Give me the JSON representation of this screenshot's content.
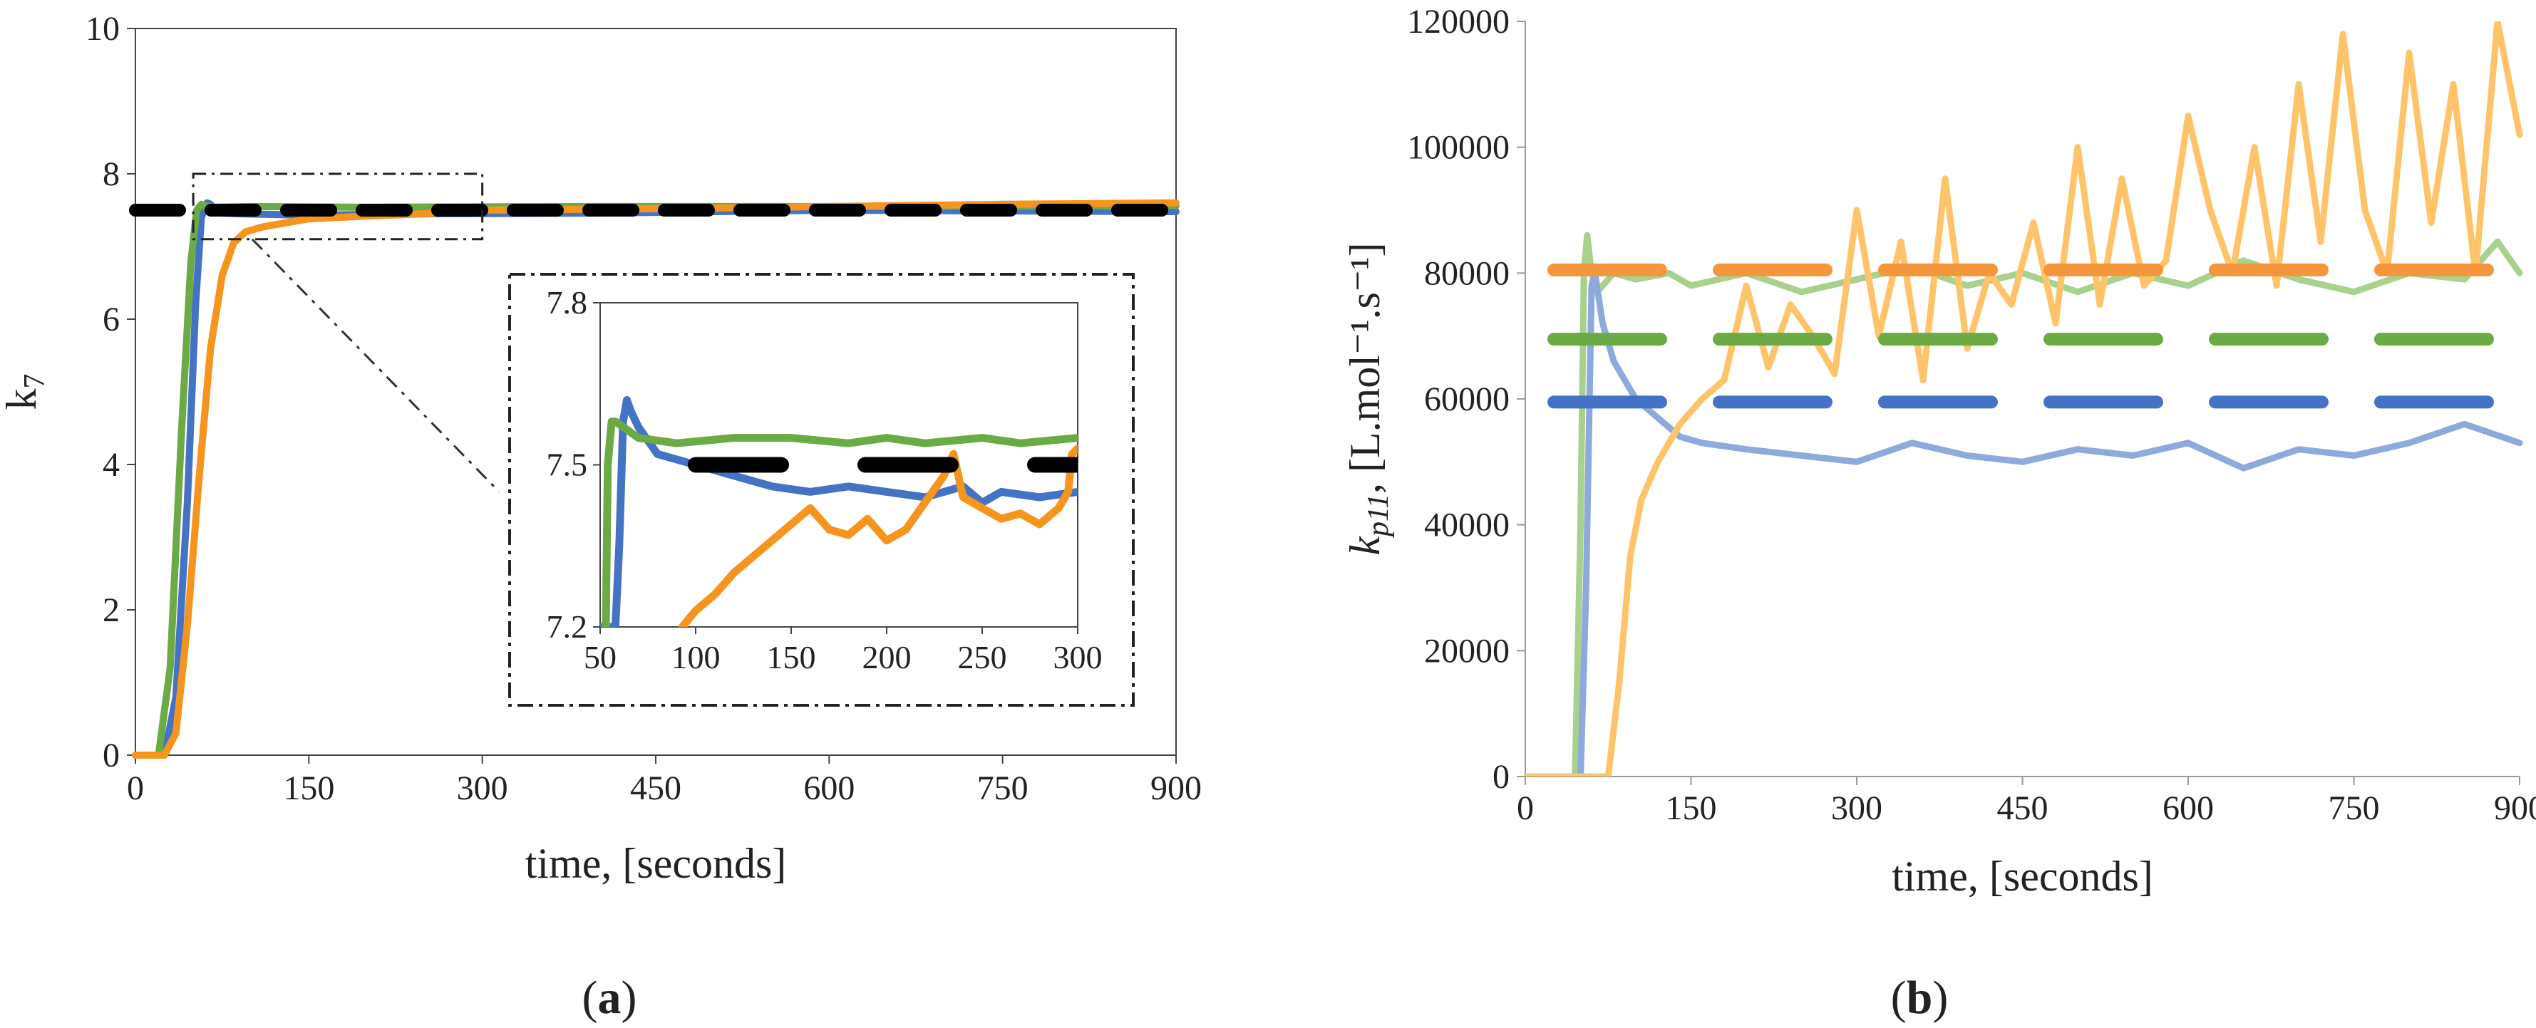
{
  "colors": {
    "blue": "#4472C4",
    "orange": "#F5951E",
    "green": "#6CAA45",
    "reference": "#000000",
    "blue_light": "#8EA9DB",
    "orange_light": "#FFC46A",
    "green_light": "#A9D18E",
    "orange_setpoint": "#F4963C"
  },
  "chart_data": [
    {
      "type": "line",
      "panel_label": "(a)",
      "panel_letter": "a",
      "ylabel": "k",
      "ylabel_subscript": "7",
      "xlabel": "time, [seconds]",
      "xlim": [
        0,
        900
      ],
      "ylim": [
        0,
        10
      ],
      "x_ticks": [
        "0",
        "150",
        "300",
        "450",
        "600",
        "750",
        "900"
      ],
      "y_ticks": [
        "0",
        "2",
        "4",
        "6",
        "8",
        "10"
      ],
      "grid": false,
      "reference_line": {
        "name": "target",
        "y": 7.5,
        "style": "dashed",
        "color": "#000000"
      },
      "series": [
        {
          "name": "blue",
          "color": "#4472C4",
          "x": [
            0,
            25,
            35,
            45,
            52,
            57,
            62,
            65,
            68,
            75,
            90,
            150,
            250,
            400,
            600,
            900
          ],
          "y": [
            0,
            0,
            0.8,
            3.5,
            6.2,
            7.4,
            7.6,
            7.58,
            7.5,
            7.46,
            7.45,
            7.43,
            7.45,
            7.46,
            7.5,
            7.48
          ]
        },
        {
          "name": "green",
          "color": "#6CAA45",
          "x": [
            0,
            20,
            30,
            40,
            48,
            53,
            57,
            60,
            70,
            100,
            200,
            400,
            600,
            900
          ],
          "y": [
            0,
            0,
            1.2,
            4.5,
            6.8,
            7.5,
            7.58,
            7.56,
            7.54,
            7.55,
            7.54,
            7.55,
            7.55,
            7.56
          ]
        },
        {
          "name": "orange",
          "color": "#F5951E",
          "x": [
            0,
            25,
            35,
            45,
            55,
            65,
            75,
            85,
            95,
            110,
            150,
            200,
            250,
            300,
            450,
            600,
            750,
            900
          ],
          "y": [
            0,
            0,
            0.3,
            1.8,
            3.8,
            5.6,
            6.6,
            7.05,
            7.2,
            7.27,
            7.38,
            7.42,
            7.45,
            7.5,
            7.52,
            7.55,
            7.58,
            7.6
          ]
        }
      ],
      "zoom_box": {
        "x_range": [
          50,
          300
        ],
        "y_range": [
          7.1,
          8.0
        ]
      },
      "inset": {
        "xlim": [
          50,
          300
        ],
        "ylim": [
          7.2,
          7.8
        ],
        "x_ticks": [
          "50",
          "100",
          "150",
          "200",
          "250",
          "300"
        ],
        "y_ticks": [
          "7.2",
          "7.5",
          "7.8"
        ],
        "reference_line": {
          "y": 7.5,
          "style": "dashed",
          "color": "#000000"
        },
        "series": [
          {
            "name": "blue",
            "color": "#4472C4",
            "x": [
              50,
              58,
              60,
              62,
              64,
              66,
              70,
              80,
              100,
              120,
              140,
              160,
              180,
              200,
              220,
              240,
              250,
              260,
              280,
              300
            ],
            "y": [
              7.2,
              7.2,
              7.35,
              7.58,
              7.62,
              7.6,
              7.57,
              7.52,
              7.5,
              7.48,
              7.46,
              7.45,
              7.46,
              7.45,
              7.44,
              7.46,
              7.43,
              7.45,
              7.44,
              7.45
            ]
          },
          {
            "name": "green",
            "color": "#6CAA45",
            "x": [
              53,
              54,
              56,
              58,
              62,
              70,
              90,
              120,
              150,
              180,
              200,
              220,
              250,
              270,
              300
            ],
            "y": [
              7.2,
              7.5,
              7.58,
              7.58,
              7.57,
              7.55,
              7.54,
              7.55,
              7.55,
              7.54,
              7.55,
              7.54,
              7.55,
              7.54,
              7.55
            ]
          },
          {
            "name": "orange",
            "color": "#F5951E",
            "x": [
              93,
              100,
              110,
              120,
              130,
              140,
              150,
              160,
              170,
              180,
              190,
              200,
              210,
              220,
              230,
              235,
              240,
              250,
              260,
              270,
              280,
              290,
              295,
              297,
              300
            ],
            "y": [
              7.2,
              7.23,
              7.26,
              7.3,
              7.33,
              7.36,
              7.39,
              7.42,
              7.38,
              7.37,
              7.4,
              7.36,
              7.38,
              7.43,
              7.48,
              7.52,
              7.44,
              7.42,
              7.4,
              7.41,
              7.39,
              7.42,
              7.45,
              7.52,
              7.53
            ]
          }
        ]
      }
    },
    {
      "type": "line",
      "panel_label": "(b)",
      "panel_letter": "b",
      "ylabel": "k",
      "ylabel_subscript": "p11",
      "ylabel_units": ", [L.mol⁻¹.s⁻¹]",
      "xlabel": "time, [seconds]",
      "xlim": [
        0,
        900
      ],
      "ylim": [
        0,
        120000
      ],
      "x_ticks": [
        "0",
        "150",
        "300",
        "450",
        "600",
        "750",
        "900"
      ],
      "y_ticks": [
        "0",
        "20000",
        "40000",
        "60000",
        "80000",
        "100000",
        "120000"
      ],
      "grid": false,
      "setpoint_lines": [
        {
          "name": "orange-setpoint",
          "y": 80500,
          "color": "#F4963C",
          "style": "dashed"
        },
        {
          "name": "green-setpoint",
          "y": 69500,
          "color": "#6CAA45",
          "style": "dashed"
        },
        {
          "name": "blue-setpoint",
          "y": 59500,
          "color": "#4472C4",
          "style": "dashed"
        }
      ],
      "series": [
        {
          "name": "green",
          "color": "#A9D18E",
          "x": [
            0,
            45,
            50,
            53,
            56,
            60,
            65,
            80,
            100,
            130,
            150,
            200,
            250,
            300,
            350,
            400,
            450,
            500,
            550,
            600,
            650,
            700,
            750,
            800,
            850,
            880,
            900
          ],
          "y": [
            0,
            0,
            40000,
            80000,
            86000,
            80000,
            77000,
            80000,
            79000,
            80000,
            78000,
            80000,
            77000,
            79000,
            81000,
            78000,
            80000,
            77000,
            80000,
            78000,
            82000,
            79000,
            77000,
            80000,
            79000,
            85000,
            80000
          ]
        },
        {
          "name": "blue",
          "color": "#8EA9DB",
          "x": [
            0,
            50,
            55,
            60,
            63,
            70,
            80,
            90,
            100,
            120,
            140,
            160,
            200,
            250,
            300,
            350,
            400,
            450,
            500,
            550,
            600,
            650,
            700,
            750,
            800,
            850,
            900
          ],
          "y": [
            0,
            0,
            30000,
            78000,
            80000,
            72000,
            66000,
            63000,
            60000,
            57000,
            54000,
            53000,
            52000,
            51000,
            50000,
            53000,
            51000,
            50000,
            52000,
            51000,
            53000,
            49000,
            52000,
            51000,
            53000,
            56000,
            53000
          ]
        },
        {
          "name": "orange",
          "color": "#FFC46A",
          "x": [
            0,
            75,
            85,
            95,
            105,
            120,
            140,
            160,
            180,
            200,
            220,
            240,
            260,
            280,
            300,
            320,
            340,
            360,
            380,
            400,
            420,
            440,
            460,
            480,
            500,
            520,
            540,
            560,
            580,
            600,
            620,
            640,
            660,
            680,
            700,
            720,
            740,
            760,
            780,
            800,
            820,
            840,
            860,
            880,
            900
          ],
          "y": [
            0,
            0,
            15000,
            35000,
            44000,
            50000,
            56000,
            60000,
            63000,
            78000,
            65000,
            75000,
            70000,
            64000,
            90000,
            70000,
            85000,
            63000,
            95000,
            68000,
            80000,
            75000,
            88000,
            72000,
            100000,
            75000,
            95000,
            78000,
            82000,
            105000,
            90000,
            80000,
            100000,
            78000,
            110000,
            85000,
            118000,
            90000,
            80000,
            115000,
            88000,
            110000,
            80000,
            120000,
            102000
          ]
        }
      ]
    }
  ]
}
